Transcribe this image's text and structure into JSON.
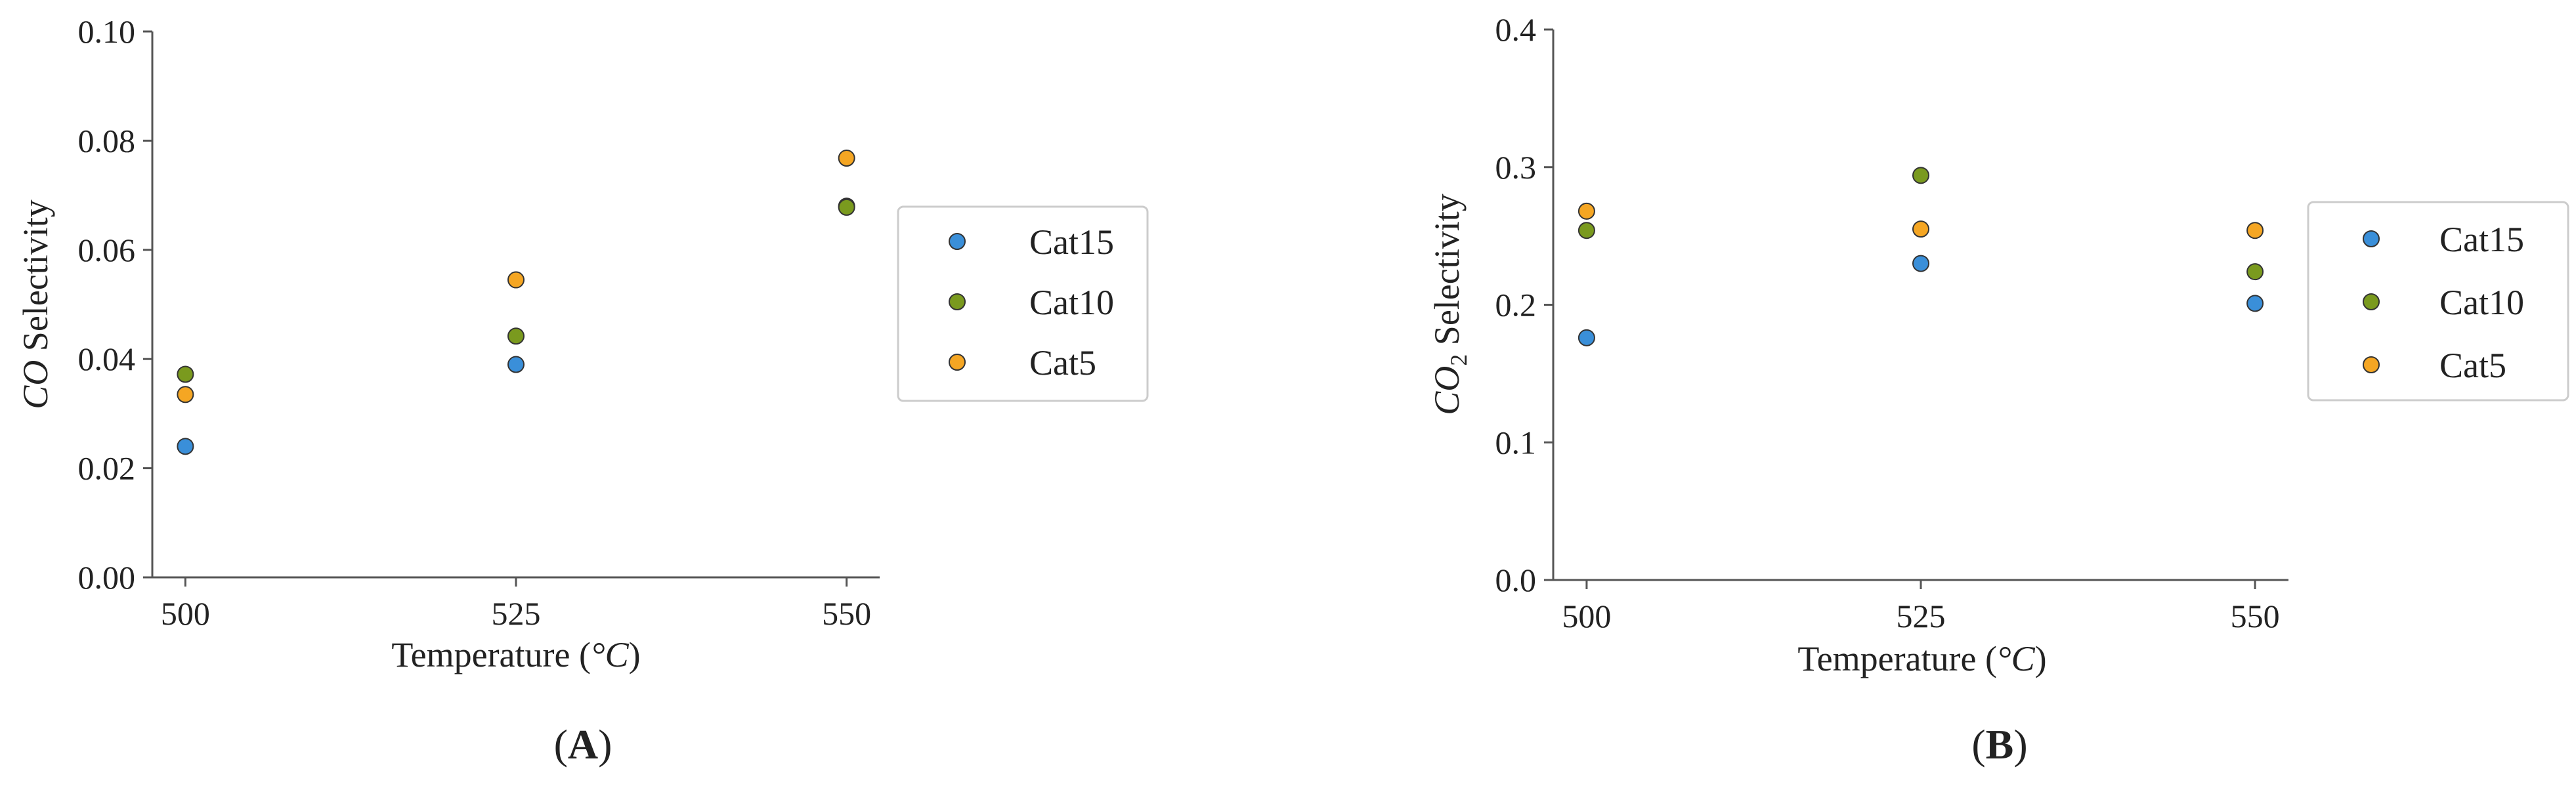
{
  "chart_data": [
    {
      "panel_label_letter": "A",
      "type": "scatter",
      "ylabel_italic": "CO",
      "ylabel_rest": " Selectivity",
      "xlabel_prefix": "Temperature (",
      "xlabel_unit": "°C",
      "xlabel_suffix": ")",
      "xlim": [
        497.5,
        552.5
      ],
      "ylim": [
        0.0,
        0.1
      ],
      "x_ticks": [
        500,
        525,
        550
      ],
      "x_tick_labels": [
        "500",
        "525",
        "550"
      ],
      "y_ticks": [
        0.0,
        0.02,
        0.04,
        0.06,
        0.08,
        0.1
      ],
      "y_tick_labels": [
        "0.00",
        "0.02",
        "0.04",
        "0.06",
        "0.08",
        "0.10"
      ],
      "grid": false,
      "legend_position": "center-right-outside",
      "series": [
        {
          "name": "Cat15",
          "color": "#3a8fd9",
          "x": [
            500,
            525,
            550
          ],
          "y": [
            0.024,
            0.039,
            0.068
          ]
        },
        {
          "name": "Cat10",
          "color": "#7a9a1e",
          "x": [
            500,
            525,
            550
          ],
          "y": [
            0.0372,
            0.0442,
            0.0678
          ]
        },
        {
          "name": "Cat5",
          "color": "#f5a623",
          "x": [
            500,
            525,
            550
          ],
          "y": [
            0.0335,
            0.0545,
            0.0768
          ]
        }
      ]
    },
    {
      "panel_label_letter": "B",
      "type": "scatter",
      "ylabel_italic": "CO",
      "ylabel_subscript": "2",
      "ylabel_rest": " Selectivity",
      "xlabel_prefix": "Temperature (",
      "xlabel_unit": "°C",
      "xlabel_suffix": ")",
      "xlim": [
        497.5,
        552.5
      ],
      "ylim": [
        0.0,
        0.4
      ],
      "x_ticks": [
        500,
        525,
        550
      ],
      "x_tick_labels": [
        "500",
        "525",
        "550"
      ],
      "y_ticks": [
        0.0,
        0.1,
        0.2,
        0.3,
        0.4
      ],
      "y_tick_labels": [
        "0.0",
        "0.1",
        "0.2",
        "0.3",
        "0.4"
      ],
      "grid": false,
      "legend_position": "center-right-outside",
      "series": [
        {
          "name": "Cat15",
          "color": "#3a8fd9",
          "x": [
            500,
            525,
            550
          ],
          "y": [
            0.176,
            0.23,
            0.201
          ]
        },
        {
          "name": "Cat10",
          "color": "#7a9a1e",
          "x": [
            500,
            525,
            550
          ],
          "y": [
            0.254,
            0.294,
            0.224
          ]
        },
        {
          "name": "Cat5",
          "color": "#f5a623",
          "x": [
            500,
            525,
            550
          ],
          "y": [
            0.268,
            0.255,
            0.254
          ]
        }
      ]
    }
  ]
}
